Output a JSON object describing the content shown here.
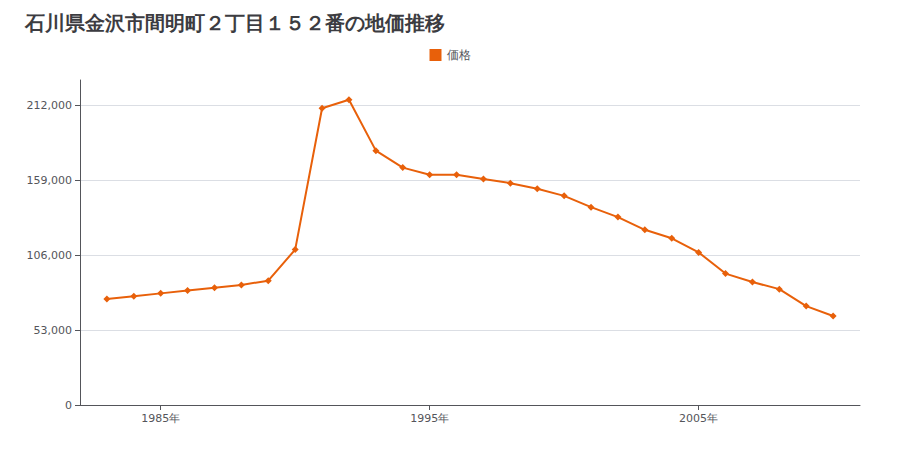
{
  "chart_data": {
    "type": "line",
    "title": "石川県金沢市間明町２丁目１５２番の地価推移",
    "x": [
      1983,
      1984,
      1985,
      1986,
      1987,
      1988,
      1989,
      1990,
      1991,
      1992,
      1993,
      1994,
      1995,
      1996,
      1997,
      1998,
      1999,
      2000,
      2001,
      2002,
      2003,
      2004,
      2005,
      2006,
      2007,
      2008,
      2009,
      2010
    ],
    "series": [
      {
        "name": "価格",
        "color": "#e8600a",
        "marker": "diamond",
        "values": [
          75000,
          77000,
          79000,
          81000,
          83000,
          85000,
          88000,
          110000,
          210000,
          216000,
          180000,
          168000,
          163000,
          163000,
          160000,
          157000,
          153000,
          148000,
          140000,
          133000,
          124000,
          118000,
          108000,
          93000,
          87000,
          82000,
          70000,
          63000
        ]
      }
    ],
    "xlim": [
      1982,
      2011
    ],
    "xticks": [
      {
        "value": 1985,
        "label": "1985年"
      },
      {
        "value": 1995,
        "label": "1995年"
      },
      {
        "value": 2005,
        "label": "2005年"
      }
    ],
    "ylim": [
      0,
      230000
    ],
    "yticks": [
      0,
      {
        "value": 53000,
        "label": "53,000"
      },
      {
        "value": 106000,
        "label": "106,000"
      },
      {
        "value": 159000,
        "label": "159,000"
      },
      {
        "value": 212000,
        "label": "212,000"
      }
    ],
    "grid": "y",
    "legend": "top"
  }
}
